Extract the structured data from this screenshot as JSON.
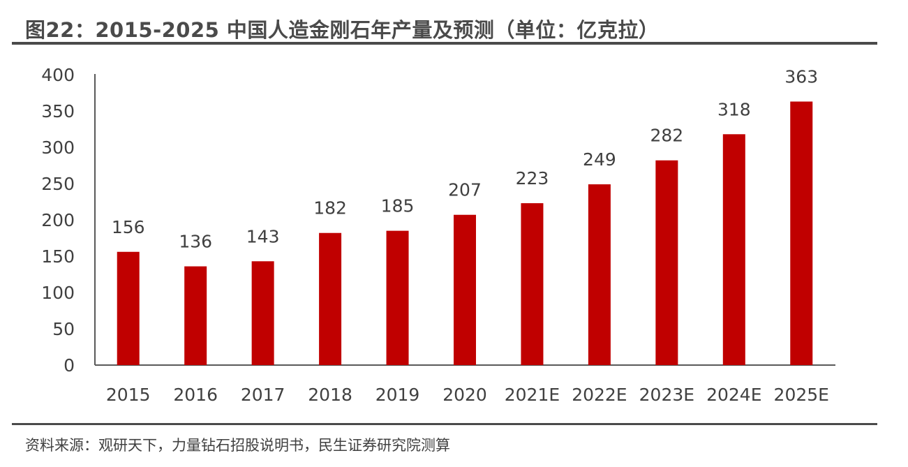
{
  "title": "图22：2015-2025 中国人造金刚石年产量及预测（单位：亿克拉）",
  "source": "资料来源：观研天下，力量钻石招股说明书，民生证券研究院测算",
  "chart_data": {
    "type": "bar",
    "title": "图22：2015-2025 中国人造金刚石年产量及预测（单位：亿克拉）",
    "xlabel": "",
    "ylabel": "",
    "categories": [
      "2015",
      "2016",
      "2017",
      "2018",
      "2019",
      "2020",
      "2021E",
      "2022E",
      "2023E",
      "2024E",
      "2025E"
    ],
    "values": [
      156,
      136,
      143,
      182,
      185,
      207,
      223,
      249,
      282,
      318,
      363
    ],
    "ylim": [
      0,
      400
    ],
    "yticks": [
      0,
      50,
      100,
      150,
      200,
      250,
      300,
      350,
      400
    ],
    "grid": false,
    "data_labels": true,
    "bar_color": "#C00000"
  }
}
